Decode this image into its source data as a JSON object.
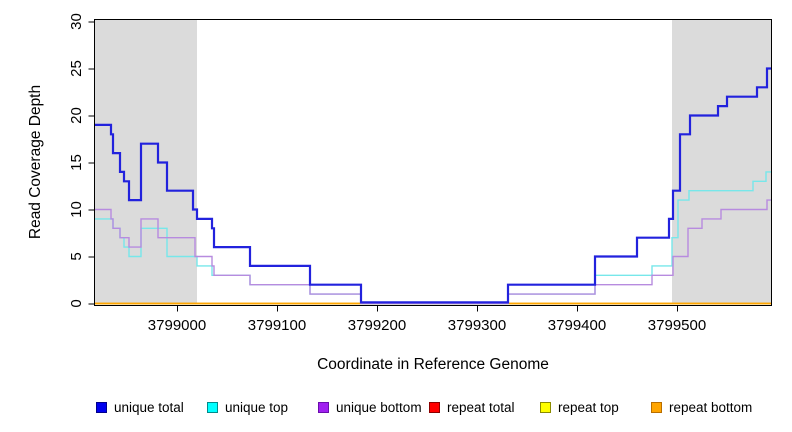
{
  "chart_data": {
    "type": "line",
    "subtype": "step-after-coverage-plot",
    "title": "",
    "xlabel": "Coordinate in Reference Genome",
    "ylabel": "Read Coverage Depth",
    "xlim": [
      3798918,
      3799595
    ],
    "ylim": [
      0,
      30
    ],
    "x_ticks": [
      3799000,
      3799100,
      3799200,
      3799300,
      3799400,
      3799500
    ],
    "y_ticks": [
      0,
      5,
      10,
      15,
      20,
      25,
      30
    ],
    "grid": false,
    "plot_bg": "#FFFFFF",
    "shaded_color": "#DBDBDB",
    "shaded_regions": [
      {
        "label": "repeat-region-left",
        "x0": 3798918,
        "x1": 3799020
      },
      {
        "label": "repeat-region-right",
        "x0": 3799495,
        "x1": 3799595
      }
    ],
    "legend_position": "bottom",
    "series": [
      {
        "name": "repeat total",
        "key": "repeat-total",
        "color": "#FF0000",
        "line_color": "#DD0000",
        "line_width": 1.4,
        "end": 3799595,
        "values": [
          [
            3798918,
            0
          ]
        ]
      },
      {
        "name": "repeat top",
        "key": "repeat-top",
        "color": "#FFFF00",
        "line_color": "#FFFF00",
        "line_width": 1.4,
        "end": 3799595,
        "values": [
          [
            3798918,
            0
          ]
        ]
      },
      {
        "name": "repeat bottom",
        "key": "repeat-bottom",
        "color": "#FFA500",
        "line_color": "#FFA500",
        "line_width": 1.6,
        "end": 3799595,
        "values": [
          [
            3798918,
            0
          ]
        ]
      },
      {
        "name": "unique top",
        "key": "unique-top",
        "color": "#00FFFF",
        "line_color": "#77E7EA",
        "line_width": 1.4,
        "end": 3799595,
        "values": [
          [
            3798918,
            9
          ],
          [
            3798936,
            8
          ],
          [
            3798943,
            7
          ],
          [
            3798947,
            6
          ],
          [
            3798952,
            5
          ],
          [
            3798964,
            8
          ],
          [
            3798990,
            5
          ],
          [
            3799020,
            4
          ],
          [
            3799035,
            3
          ],
          [
            3799073,
            2
          ],
          [
            3799133,
            1
          ],
          [
            3799184,
            0
          ],
          [
            3799331,
            1
          ],
          [
            3799418,
            3
          ],
          [
            3799475,
            4
          ],
          [
            3799495,
            7
          ],
          [
            3799501,
            11
          ],
          [
            3799512,
            12
          ],
          [
            3799576,
            13
          ],
          [
            3799589,
            14
          ]
        ]
      },
      {
        "name": "unique bottom",
        "key": "unique-bottom",
        "color": "#A020F0",
        "line_color": "#B78BDF",
        "line_width": 1.4,
        "end": 3799595,
        "values": [
          [
            3798918,
            10
          ],
          [
            3798934,
            9
          ],
          [
            3798936,
            8
          ],
          [
            3798943,
            7
          ],
          [
            3798952,
            6
          ],
          [
            3798964,
            9
          ],
          [
            3798981,
            7
          ],
          [
            3799018,
            5
          ],
          [
            3799035,
            4
          ],
          [
            3799037,
            3
          ],
          [
            3799073,
            2
          ],
          [
            3799133,
            1
          ],
          [
            3799184,
            0
          ],
          [
            3799331,
            1
          ],
          [
            3799418,
            2
          ],
          [
            3799475,
            3
          ],
          [
            3799496,
            5
          ],
          [
            3799511,
            8
          ],
          [
            3799525,
            9
          ],
          [
            3799544,
            10
          ],
          [
            3799590,
            11
          ]
        ]
      },
      {
        "name": "unique total",
        "key": "unique-total",
        "color": "#0000EE",
        "line_color": "#2222DD",
        "line_width": 2.2,
        "end": 3799595,
        "values": [
          [
            3798918,
            19
          ],
          [
            3798934,
            18
          ],
          [
            3798936,
            16
          ],
          [
            3798943,
            14
          ],
          [
            3798947,
            13
          ],
          [
            3798952,
            11
          ],
          [
            3798964,
            17
          ],
          [
            3798981,
            15
          ],
          [
            3798990,
            12
          ],
          [
            3799016,
            10
          ],
          [
            3799020,
            9
          ],
          [
            3799035,
            8
          ],
          [
            3799037,
            6
          ],
          [
            3799073,
            4
          ],
          [
            3799133,
            2
          ],
          [
            3799184,
            0
          ],
          [
            3799331,
            2
          ],
          [
            3799418,
            5
          ],
          [
            3799460,
            7
          ],
          [
            3799492,
            9
          ],
          [
            3799496,
            12
          ],
          [
            3799503,
            18
          ],
          [
            3799513,
            20
          ],
          [
            3799541,
            21
          ],
          [
            3799550,
            22
          ],
          [
            3799580,
            23
          ],
          [
            3799590,
            25
          ]
        ]
      }
    ],
    "legend": [
      {
        "label": "unique total",
        "fill": "#0000EE",
        "border": "#00008B"
      },
      {
        "label": "unique top",
        "fill": "#00FFFF",
        "border": "#008B8B"
      },
      {
        "label": "unique bottom",
        "fill": "#A020F0",
        "border": "#6A0DAD"
      },
      {
        "label": "repeat total",
        "fill": "#FF0000",
        "border": "#8B0000"
      },
      {
        "label": "repeat top",
        "fill": "#FFFF00",
        "border": "#8B8B00"
      },
      {
        "label": "repeat bottom",
        "fill": "#FFA500",
        "border": "#B86E00"
      }
    ]
  }
}
